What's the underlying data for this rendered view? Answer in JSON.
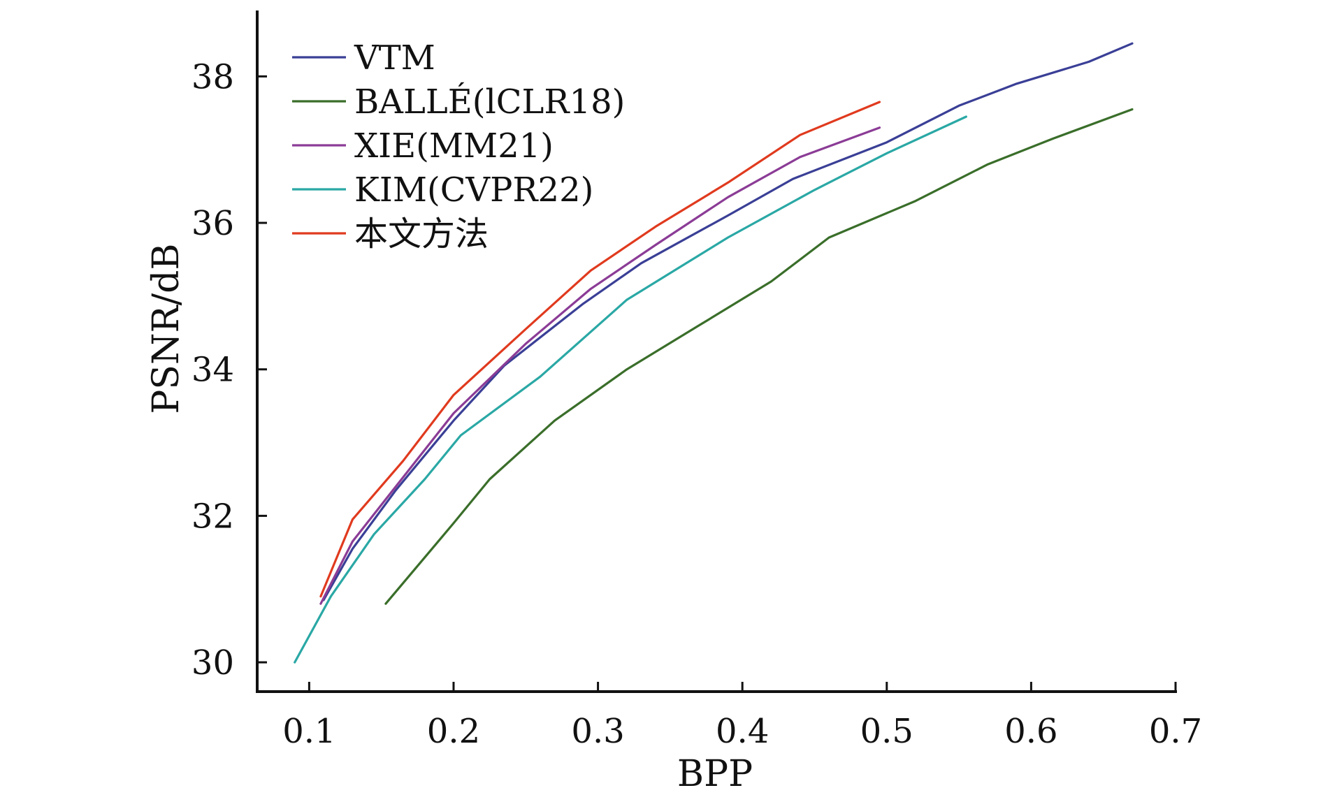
{
  "chart_data": {
    "type": "line",
    "title": "",
    "xlabel": "BPP",
    "ylabel": "PSNR/dB",
    "xlim": [
      0.064,
      0.7
    ],
    "ylim": [
      29.6,
      38.9
    ],
    "xticks": [
      0.1,
      0.2,
      0.3,
      0.4,
      0.5,
      0.6,
      0.7
    ],
    "xtick_labels": [
      "0.1",
      "0.2",
      "0.3",
      "0.4",
      "0.5",
      "0.6",
      "0.7"
    ],
    "yticks": [
      30,
      32,
      34,
      36,
      38
    ],
    "ytick_labels": [
      "30",
      "32",
      "34",
      "36",
      "38"
    ],
    "grid": false,
    "legend_position": "top-left",
    "series": [
      {
        "name": "VTM",
        "color": "#3a3f96",
        "points": [
          [
            0.11,
            30.85
          ],
          [
            0.13,
            31.55
          ],
          [
            0.16,
            32.35
          ],
          [
            0.2,
            33.3
          ],
          [
            0.235,
            34.05
          ],
          [
            0.29,
            34.9
          ],
          [
            0.33,
            35.45
          ],
          [
            0.39,
            36.1
          ],
          [
            0.435,
            36.6
          ],
          [
            0.5,
            37.1
          ],
          [
            0.55,
            37.6
          ],
          [
            0.59,
            37.9
          ],
          [
            0.64,
            38.2
          ],
          [
            0.67,
            38.45
          ]
        ]
      },
      {
        "name": "BALLÉ(lCLR18)",
        "color": "#3a6e2a",
        "points": [
          [
            0.153,
            30.8
          ],
          [
            0.2,
            31.9
          ],
          [
            0.225,
            32.5
          ],
          [
            0.27,
            33.3
          ],
          [
            0.32,
            34.0
          ],
          [
            0.37,
            34.6
          ],
          [
            0.42,
            35.2
          ],
          [
            0.46,
            35.8
          ],
          [
            0.52,
            36.3
          ],
          [
            0.57,
            36.8
          ],
          [
            0.615,
            37.15
          ],
          [
            0.67,
            37.55
          ]
        ]
      },
      {
        "name": "XIE(MM21)",
        "color": "#8b3c96",
        "points": [
          [
            0.108,
            30.8
          ],
          [
            0.13,
            31.65
          ],
          [
            0.16,
            32.4
          ],
          [
            0.2,
            33.4
          ],
          [
            0.25,
            34.35
          ],
          [
            0.295,
            35.1
          ],
          [
            0.34,
            35.7
          ],
          [
            0.39,
            36.35
          ],
          [
            0.44,
            36.9
          ],
          [
            0.495,
            37.3
          ]
        ]
      },
      {
        "name": "KIM(CVPR22)",
        "color": "#2aa8a5",
        "points": [
          [
            0.09,
            30.0
          ],
          [
            0.115,
            30.9
          ],
          [
            0.145,
            31.75
          ],
          [
            0.18,
            32.5
          ],
          [
            0.205,
            33.1
          ],
          [
            0.26,
            33.9
          ],
          [
            0.32,
            34.95
          ],
          [
            0.39,
            35.8
          ],
          [
            0.45,
            36.45
          ],
          [
            0.5,
            36.95
          ],
          [
            0.555,
            37.45
          ]
        ]
      },
      {
        "name": "本文方法",
        "color": "#e03a1e",
        "points": [
          [
            0.108,
            30.9
          ],
          [
            0.13,
            31.95
          ],
          [
            0.165,
            32.75
          ],
          [
            0.2,
            33.65
          ],
          [
            0.25,
            34.55
          ],
          [
            0.295,
            35.35
          ],
          [
            0.34,
            35.95
          ],
          [
            0.39,
            36.55
          ],
          [
            0.44,
            37.2
          ],
          [
            0.495,
            37.65
          ]
        ]
      }
    ]
  }
}
